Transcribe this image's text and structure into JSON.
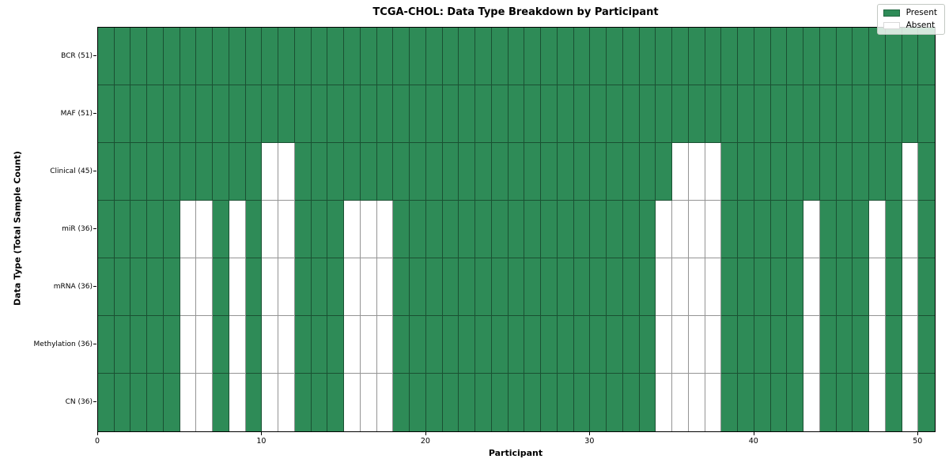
{
  "chart_data": {
    "type": "heatmap",
    "title": "TCGA-CHOL: Data Type Breakdown by Participant",
    "xlabel": "Participant",
    "ylabel": "Data Type (Total Sample Count)",
    "n_participants": 51,
    "x_range": [
      0,
      51
    ],
    "x_ticks": [
      0,
      10,
      20,
      30,
      40,
      50
    ],
    "legend_position": "upper right",
    "legend": [
      {
        "label": "Present",
        "color": "#2e8b57"
      },
      {
        "label": "Absent",
        "color": "#ffffff"
      }
    ],
    "rows": [
      {
        "label": "BCR (51)",
        "present_count": 51,
        "absent_participants": []
      },
      {
        "label": "MAF (51)",
        "present_count": 51,
        "absent_participants": []
      },
      {
        "label": "Clinical (45)",
        "present_count": 45,
        "absent_participants": [
          10,
          11,
          35,
          36,
          37,
          49
        ]
      },
      {
        "label": "miR (36)",
        "present_count": 36,
        "absent_participants": [
          5,
          6,
          8,
          10,
          11,
          15,
          16,
          17,
          34,
          35,
          36,
          37,
          43,
          47,
          49
        ]
      },
      {
        "label": "mRNA (36)",
        "present_count": 36,
        "absent_participants": [
          5,
          6,
          8,
          10,
          11,
          15,
          16,
          17,
          34,
          35,
          36,
          37,
          43,
          47,
          49
        ]
      },
      {
        "label": "Methylation (36)",
        "present_count": 36,
        "absent_participants": [
          5,
          6,
          8,
          10,
          11,
          15,
          16,
          17,
          34,
          35,
          36,
          37,
          43,
          47,
          49
        ]
      },
      {
        "label": "CN (36)",
        "present_count": 36,
        "absent_participants": [
          5,
          6,
          8,
          10,
          11,
          15,
          16,
          17,
          34,
          35,
          36,
          37,
          43,
          47,
          49
        ]
      }
    ]
  }
}
